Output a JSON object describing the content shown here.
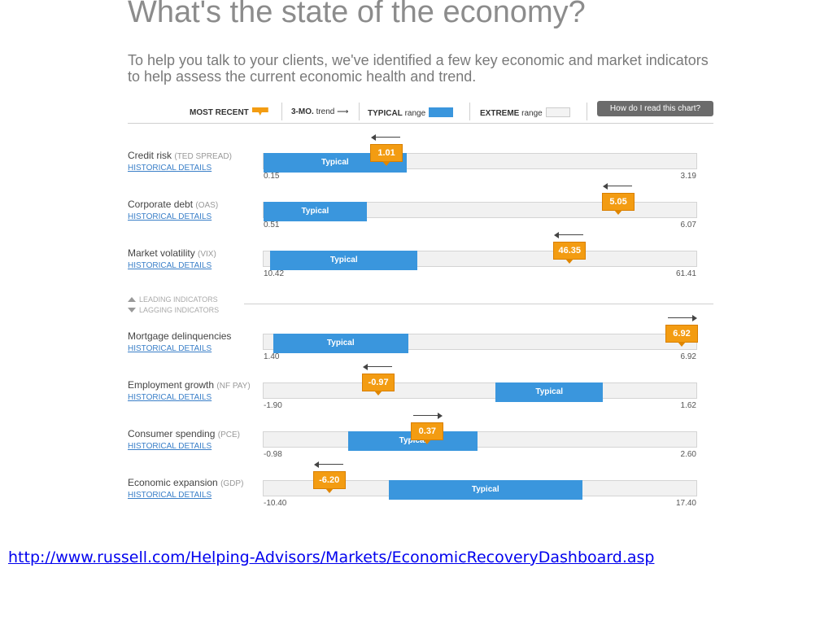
{
  "page": {
    "title": "What's the state of the economy?",
    "intro": "To help you talk to your clients, we've identified a few key economic and market indicators to help assess the current economic health and trend.",
    "footer_url": "http://www.russell.com/Helping-Advisors/Markets/EconomicRecoveryDashboard.asp"
  },
  "legend": {
    "most_recent": "MOST RECENT",
    "trend_bold": "3-MO.",
    "trend_rest": "trend",
    "typical_bold": "TYPICAL",
    "typical_rest": "range",
    "extreme_bold": "EXTREME",
    "extreme_rest": "range",
    "help_button": "How do I read this chart?"
  },
  "sections": {
    "leading": "LEADING INDICATORS",
    "lagging": "LAGGING INDICATORS"
  },
  "colors": {
    "typical": "#3a96dd",
    "marker": "#f39c12",
    "extreme": "#f1f1f1"
  },
  "chart_data": {
    "type": "range-gauge",
    "typical_label": "Typical",
    "link_label": "HISTORICAL DETAILS",
    "indicators": [
      {
        "name": "Credit risk",
        "code": "(TED SPREAD)",
        "min": 0.15,
        "max": 3.19,
        "min_label": "0.15",
        "max_label": "3.19",
        "typical": [
          0.15,
          1.15
        ],
        "recent": 1.01,
        "recent_label": "1.01",
        "trend": "down"
      },
      {
        "name": "Corporate debt",
        "code": "(OAS)",
        "min": 0.51,
        "max": 6.07,
        "min_label": "0.51",
        "max_label": "6.07",
        "typical": [
          0.51,
          1.83
        ],
        "recent": 5.05,
        "recent_label": "5.05",
        "trend": "down"
      },
      {
        "name": "Market volatility",
        "code": "(VIX)",
        "min": 10.42,
        "max": 61.41,
        "min_label": "10.42",
        "max_label": "61.41",
        "typical": [
          11.2,
          28.5
        ],
        "recent": 46.35,
        "recent_label": "46.35",
        "trend": "down"
      },
      {
        "name": "Mortgage delinquencies",
        "code": "",
        "min": 1.4,
        "max": 6.92,
        "min_label": "1.40",
        "max_label": "6.92",
        "typical": [
          1.52,
          3.24
        ],
        "recent": 6.92,
        "recent_label": "6.92",
        "trend": "up"
      },
      {
        "name": "Employment growth",
        "code": "(NF PAY)",
        "min": -1.9,
        "max": 1.62,
        "min_label": "-1.90",
        "max_label": "1.62",
        "typical": [
          -0.02,
          0.85
        ],
        "recent": -0.97,
        "recent_label": "-0.97",
        "trend": "down"
      },
      {
        "name": "Consumer spending",
        "code": "(PCE)",
        "min": -0.98,
        "max": 2.6,
        "min_label": "-0.98",
        "max_label": "2.60",
        "typical": [
          -0.28,
          0.78
        ],
        "recent": 0.37,
        "recent_label": "0.37",
        "trend": "up"
      },
      {
        "name": "Economic expansion",
        "code": "(GDP)",
        "min": -10.4,
        "max": 17.4,
        "min_label": "-10.40",
        "max_label": "17.40",
        "typical": [
          -2.4,
          10.0
        ],
        "recent": -6.2,
        "recent_label": "-6.20",
        "trend": "down"
      }
    ]
  }
}
